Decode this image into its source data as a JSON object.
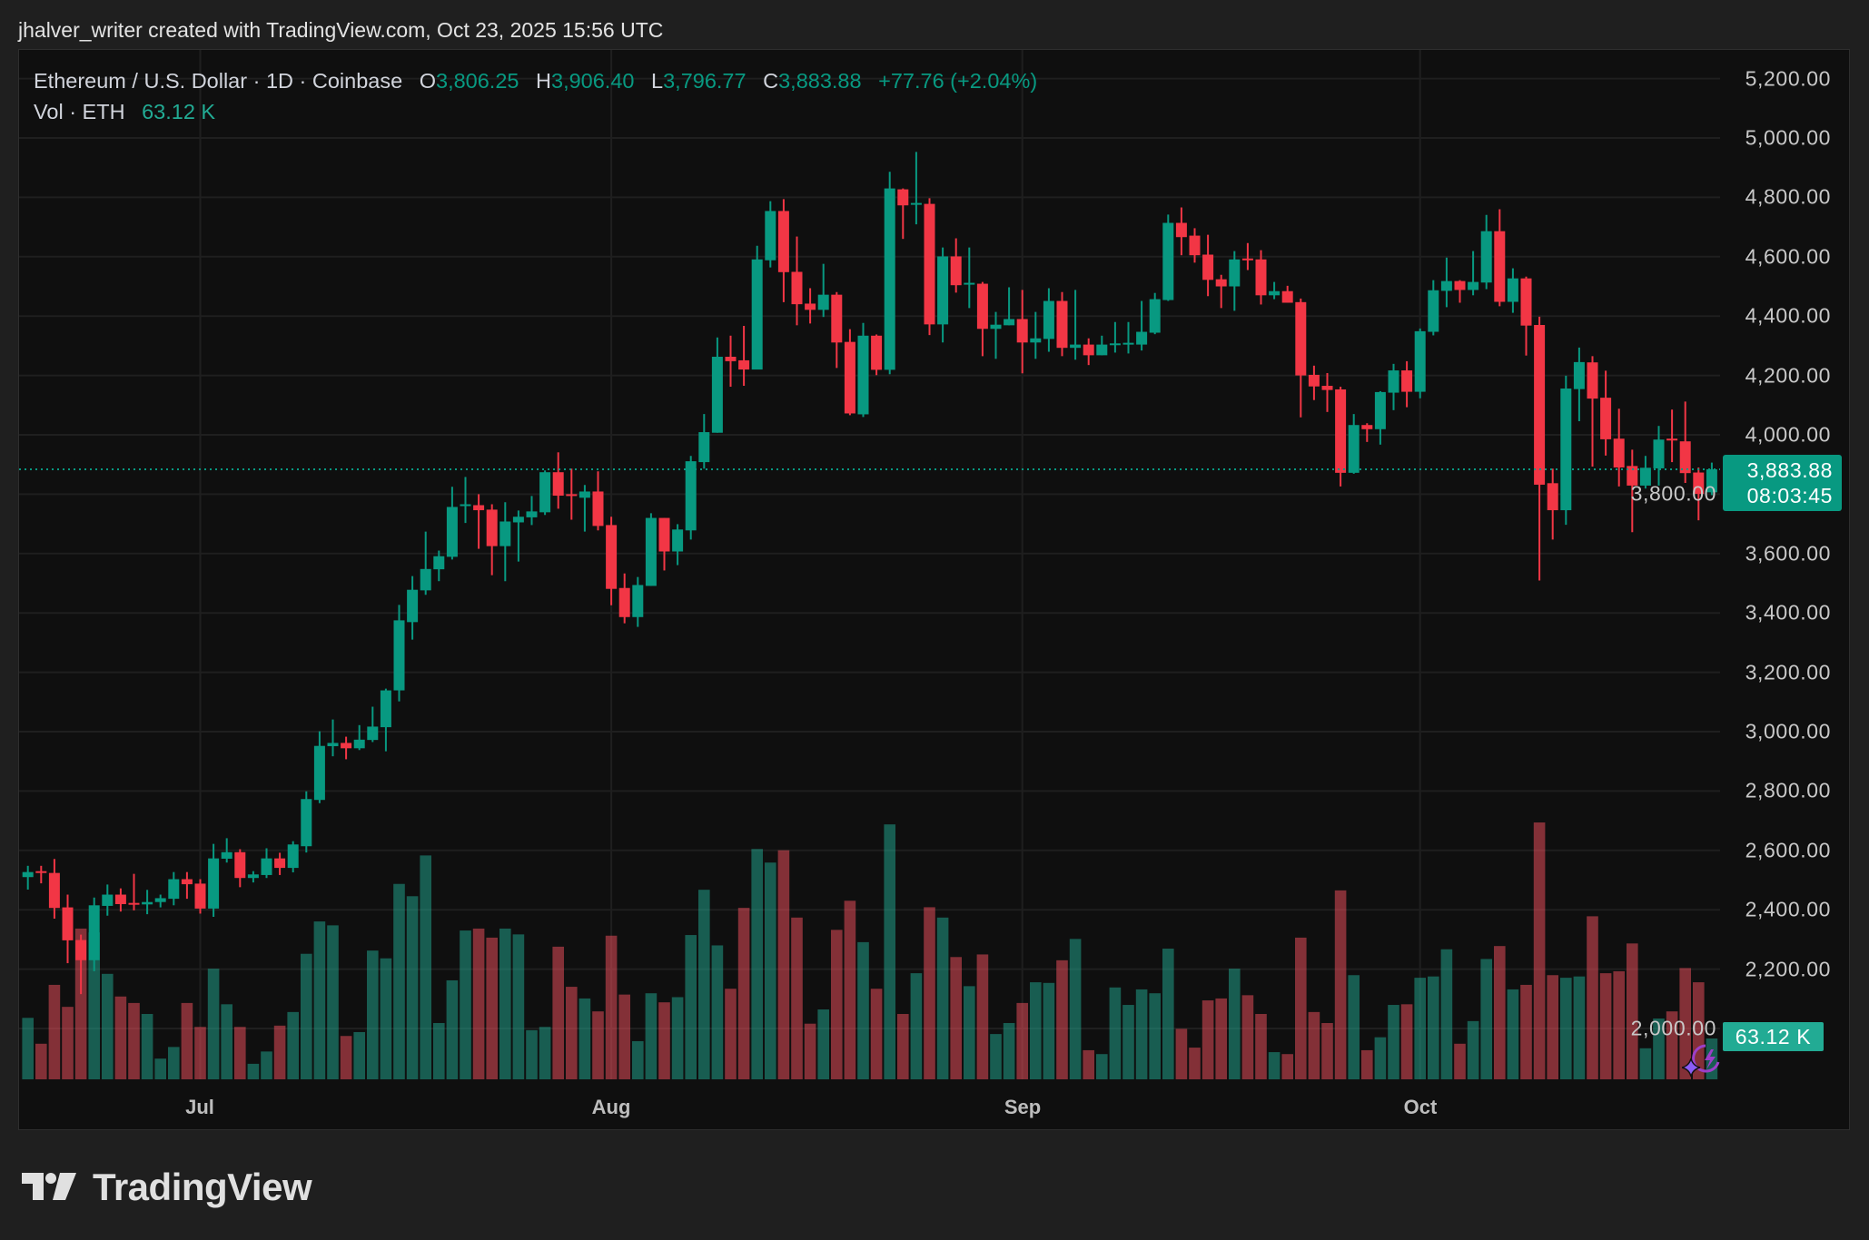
{
  "header": {
    "attribution": "jhalver_writer created with TradingView.com, Oct 23, 2025 15:56 UTC"
  },
  "legend": {
    "symbol": "Ethereum / U.S. Dollar · 1D · Coinbase",
    "o_label": "O",
    "open": "3,806.25",
    "h_label": "H",
    "high": "3,906.40",
    "l_label": "L",
    "low": "3,796.77",
    "c_label": "C",
    "close": "3,883.88",
    "change": "+77.76 (+2.04%)",
    "vol_label": "Vol · ETH",
    "vol_value": "63.12 K"
  },
  "price_axis": {
    "ticks": [
      "5,200.00",
      "5,000.00",
      "4,800.00",
      "4,600.00",
      "4,400.00",
      "4,200.00",
      "4,000.00",
      "3,800.00",
      "3,600.00",
      "3,400.00",
      "3,200.00",
      "3,000.00",
      "2,800.00",
      "2,600.00",
      "2,400.00",
      "2,200.00",
      "2,000.00"
    ],
    "last_price": "3,883.88",
    "countdown": "08:03:45",
    "volume_label": "63.12 K"
  },
  "time_axis": {
    "labels": [
      "Jul",
      "Aug",
      "Sep",
      "Oct"
    ]
  },
  "logo": {
    "text": "TradingView"
  },
  "colors": {
    "up": "#089981",
    "down": "#f23645",
    "volume_up": "#22ab94",
    "volume_down": "#f7525f",
    "background": "#0f0f0f",
    "ai_icon": "#8b5cf6"
  },
  "icons": [
    "tradingview-logo-icon",
    "ai-assistant-icon"
  ],
  "chart_data": {
    "type": "candlestick",
    "title": "Ethereum / U.S. Dollar · 1D · Coinbase",
    "interval": "1D",
    "ylim": [
      2000,
      5200
    ],
    "grid": true,
    "last_price": 3883.88,
    "columns": [
      "date",
      "open",
      "high",
      "low",
      "close",
      "volume_k"
    ],
    "rows": [
      [
        "2025-06-18",
        2510,
        2548,
        2468,
        2527,
        95
      ],
      [
        "2025-06-19",
        2530,
        2548,
        2489,
        2524,
        55
      ],
      [
        "2025-06-20",
        2524,
        2571,
        2370,
        2406,
        146
      ],
      [
        "2025-06-21",
        2408,
        2451,
        2220,
        2297,
        112
      ],
      [
        "2025-06-22",
        2298,
        2316,
        2116,
        2230,
        233
      ],
      [
        "2025-06-23",
        2230,
        2441,
        2193,
        2415,
        227
      ],
      [
        "2025-06-24",
        2413,
        2485,
        2380,
        2451,
        163
      ],
      [
        "2025-06-25",
        2451,
        2472,
        2394,
        2419,
        128
      ],
      [
        "2025-06-26",
        2423,
        2521,
        2398,
        2418,
        118
      ],
      [
        "2025-06-27",
        2418,
        2467,
        2385,
        2426,
        101
      ],
      [
        "2025-06-28",
        2426,
        2451,
        2408,
        2439,
        32
      ],
      [
        "2025-06-29",
        2437,
        2527,
        2415,
        2503,
        50
      ],
      [
        "2025-06-30",
        2503,
        2527,
        2437,
        2486,
        118
      ],
      [
        "2025-07-01",
        2488,
        2503,
        2387,
        2404,
        81
      ],
      [
        "2025-07-02",
        2404,
        2622,
        2376,
        2573,
        171
      ],
      [
        "2025-07-03",
        2572,
        2641,
        2559,
        2594,
        116
      ],
      [
        "2025-07-04",
        2594,
        2604,
        2476,
        2507,
        81
      ],
      [
        "2025-07-05",
        2507,
        2530,
        2492,
        2519,
        24
      ],
      [
        "2025-07-06",
        2517,
        2607,
        2507,
        2573,
        43
      ],
      [
        "2025-07-07",
        2573,
        2592,
        2517,
        2541,
        83
      ],
      [
        "2025-07-08",
        2541,
        2631,
        2526,
        2620,
        104
      ],
      [
        "2025-07-09",
        2614,
        2799,
        2593,
        2773,
        194
      ],
      [
        "2025-07-10",
        2770,
        3001,
        2759,
        2952,
        244
      ],
      [
        "2025-07-11",
        2951,
        3041,
        2917,
        2962,
        238
      ],
      [
        "2025-07-12",
        2962,
        2983,
        2907,
        2944,
        67
      ],
      [
        "2025-07-13",
        2944,
        3022,
        2938,
        2973,
        73
      ],
      [
        "2025-07-14",
        2972,
        3084,
        2965,
        3017,
        199
      ],
      [
        "2025-07-15",
        3015,
        3145,
        2934,
        3139,
        187
      ],
      [
        "2025-07-16",
        3139,
        3427,
        3102,
        3375,
        302
      ],
      [
        "2025-07-17",
        3369,
        3524,
        3310,
        3478,
        283
      ],
      [
        "2025-07-18",
        3476,
        3674,
        3461,
        3548,
        346
      ],
      [
        "2025-07-19",
        3547,
        3610,
        3507,
        3591,
        87
      ],
      [
        "2025-07-20",
        3589,
        3825,
        3580,
        3757,
        153
      ],
      [
        "2025-07-21",
        3761,
        3858,
        3703,
        3766,
        230
      ],
      [
        "2025-07-22",
        3763,
        3800,
        3616,
        3746,
        233
      ],
      [
        "2025-07-23",
        3748,
        3766,
        3527,
        3625,
        219
      ],
      [
        "2025-07-24",
        3625,
        3773,
        3507,
        3708,
        233
      ],
      [
        "2025-07-25",
        3705,
        3745,
        3573,
        3724,
        224
      ],
      [
        "2025-07-26",
        3722,
        3794,
        3696,
        3742,
        76
      ],
      [
        "2025-07-27",
        3739,
        3880,
        3730,
        3874,
        81
      ],
      [
        "2025-07-28",
        3874,
        3941,
        3751,
        3795,
        205
      ],
      [
        "2025-07-29",
        3800,
        3886,
        3714,
        3795,
        143
      ],
      [
        "2025-07-30",
        3788,
        3831,
        3674,
        3809,
        125
      ],
      [
        "2025-07-31",
        3809,
        3877,
        3678,
        3693,
        105
      ],
      [
        "2025-08-01",
        3696,
        3724,
        3426,
        3481,
        222
      ],
      [
        "2025-08-02",
        3484,
        3533,
        3365,
        3386,
        131
      ],
      [
        "2025-08-03",
        3386,
        3521,
        3353,
        3494,
        59
      ],
      [
        "2025-08-04",
        3491,
        3736,
        3491,
        3720,
        133
      ],
      [
        "2025-08-05",
        3720,
        3720,
        3543,
        3607,
        119
      ],
      [
        "2025-08-06",
        3607,
        3699,
        3561,
        3681,
        127
      ],
      [
        "2025-08-07",
        3678,
        3929,
        3647,
        3911,
        223
      ],
      [
        "2025-08-08",
        3908,
        4070,
        3886,
        4009,
        293
      ],
      [
        "2025-08-09",
        4007,
        4328,
        4007,
        4263,
        207
      ],
      [
        "2025-08-10",
        4263,
        4334,
        4162,
        4248,
        140
      ],
      [
        "2025-08-11",
        4251,
        4367,
        4165,
        4220,
        265
      ],
      [
        "2025-08-12",
        4220,
        4637,
        4220,
        4591,
        356
      ],
      [
        "2025-08-13",
        4588,
        4787,
        4564,
        4754,
        335
      ],
      [
        "2025-08-14",
        4754,
        4794,
        4447,
        4548,
        354
      ],
      [
        "2025-08-15",
        4549,
        4668,
        4369,
        4440,
        250
      ],
      [
        "2025-08-16",
        4442,
        4494,
        4375,
        4421,
        86
      ],
      [
        "2025-08-17",
        4421,
        4576,
        4397,
        4472,
        108
      ],
      [
        "2025-08-18",
        4472,
        4481,
        4225,
        4311,
        231
      ],
      [
        "2025-08-19",
        4313,
        4356,
        4066,
        4072,
        276
      ],
      [
        "2025-08-20",
        4069,
        4377,
        4060,
        4334,
        212
      ],
      [
        "2025-08-21",
        4334,
        4338,
        4201,
        4219,
        140
      ],
      [
        "2025-08-22",
        4219,
        4886,
        4204,
        4830,
        394
      ],
      [
        "2025-08-23",
        4827,
        4830,
        4660,
        4773,
        101
      ],
      [
        "2025-08-24",
        4776,
        4953,
        4709,
        4781,
        164
      ],
      [
        "2025-08-25",
        4778,
        4797,
        4336,
        4372,
        266
      ],
      [
        "2025-08-26",
        4372,
        4631,
        4311,
        4601,
        250
      ],
      [
        "2025-08-27",
        4601,
        4662,
        4479,
        4504,
        189
      ],
      [
        "2025-08-28",
        4507,
        4631,
        4427,
        4512,
        144
      ],
      [
        "2025-08-29",
        4509,
        4515,
        4265,
        4357,
        193
      ],
      [
        "2025-08-30",
        4357,
        4414,
        4256,
        4371,
        70
      ],
      [
        "2025-08-31",
        4369,
        4497,
        4369,
        4390,
        87
      ],
      [
        "2025-09-01",
        4390,
        4488,
        4207,
        4311,
        118
      ],
      [
        "2025-09-02",
        4311,
        4414,
        4256,
        4325,
        150
      ],
      [
        "2025-09-03",
        4323,
        4494,
        4280,
        4451,
        149
      ],
      [
        "2025-09-04",
        4451,
        4481,
        4265,
        4293,
        184
      ],
      [
        "2025-09-05",
        4293,
        4488,
        4253,
        4304,
        217
      ],
      [
        "2025-09-06",
        4304,
        4325,
        4235,
        4268,
        45
      ],
      [
        "2025-09-07",
        4268,
        4334,
        4268,
        4304,
        39
      ],
      [
        "2025-09-08",
        4303,
        4380,
        4277,
        4308,
        142
      ],
      [
        "2025-09-09",
        4306,
        4380,
        4274,
        4310,
        115
      ],
      [
        "2025-09-10",
        4304,
        4451,
        4284,
        4347,
        139
      ],
      [
        "2025-09-11",
        4344,
        4478,
        4339,
        4457,
        133
      ],
      [
        "2025-09-12",
        4454,
        4742,
        4451,
        4714,
        202
      ],
      [
        "2025-09-13",
        4714,
        4766,
        4605,
        4666,
        78
      ],
      [
        "2025-09-14",
        4671,
        4696,
        4580,
        4605,
        49
      ],
      [
        "2025-09-15",
        4607,
        4674,
        4467,
        4522,
        122
      ],
      [
        "2025-09-16",
        4524,
        4539,
        4427,
        4500,
        125
      ],
      [
        "2025-09-17",
        4500,
        4619,
        4418,
        4591,
        171
      ],
      [
        "2025-09-18",
        4594,
        4646,
        4555,
        4589,
        130
      ],
      [
        "2025-09-19",
        4591,
        4622,
        4439,
        4470,
        101
      ],
      [
        "2025-09-20",
        4470,
        4515,
        4457,
        4484,
        42
      ],
      [
        "2025-09-21",
        4484,
        4502,
        4445,
        4445,
        39
      ],
      [
        "2025-09-22",
        4447,
        4459,
        4059,
        4200,
        219
      ],
      [
        "2025-09-23",
        4202,
        4233,
        4117,
        4163,
        104
      ],
      [
        "2025-09-24",
        4165,
        4208,
        4077,
        4151,
        87
      ],
      [
        "2025-09-25",
        4153,
        4162,
        3826,
        3872,
        292
      ],
      [
        "2025-09-26",
        3872,
        4070,
        3869,
        4033,
        161
      ],
      [
        "2025-09-27",
        4033,
        4039,
        3976,
        4019,
        45
      ],
      [
        "2025-09-28",
        4019,
        4147,
        3967,
        4144,
        65
      ],
      [
        "2025-09-29",
        4142,
        4239,
        4083,
        4217,
        115
      ],
      [
        "2025-09-30",
        4217,
        4248,
        4093,
        4145,
        116
      ],
      [
        "2025-10-01",
        4145,
        4358,
        4123,
        4349,
        157
      ],
      [
        "2025-10-02",
        4347,
        4521,
        4335,
        4487,
        159
      ],
      [
        "2025-10-03",
        4485,
        4597,
        4430,
        4518,
        201
      ],
      [
        "2025-10-04",
        4518,
        4521,
        4445,
        4488,
        55
      ],
      [
        "2025-10-05",
        4488,
        4619,
        4470,
        4515,
        90
      ],
      [
        "2025-10-06",
        4513,
        4741,
        4491,
        4686,
        186
      ],
      [
        "2025-10-07",
        4686,
        4760,
        4433,
        4448,
        206
      ],
      [
        "2025-10-08",
        4448,
        4561,
        4411,
        4527,
        139
      ],
      [
        "2025-10-09",
        4527,
        4533,
        4267,
        4368,
        146
      ],
      [
        "2025-10-10",
        4370,
        4398,
        3509,
        3832,
        397
      ],
      [
        "2025-10-11",
        3837,
        3886,
        3647,
        3746,
        161
      ],
      [
        "2025-10-12",
        3746,
        4199,
        3697,
        4156,
        157
      ],
      [
        "2025-10-13",
        4154,
        4294,
        4046,
        4245,
        159
      ],
      [
        "2025-10-14",
        4244,
        4265,
        3893,
        4122,
        252
      ],
      [
        "2025-10-15",
        4125,
        4216,
        3930,
        3985,
        164
      ],
      [
        "2025-10-16",
        3987,
        4088,
        3826,
        3890,
        167
      ],
      [
        "2025-10-17",
        3895,
        3950,
        3672,
        3829,
        210
      ],
      [
        "2025-10-18",
        3829,
        3929,
        3819,
        3889,
        48
      ],
      [
        "2025-10-19",
        3887,
        4030,
        3829,
        3984,
        94
      ],
      [
        "2025-10-20",
        3987,
        4085,
        3908,
        3982,
        105
      ],
      [
        "2025-10-21",
        3978,
        4112,
        3838,
        3871,
        172
      ],
      [
        "2025-10-22",
        3873,
        3890,
        3712,
        3801,
        150
      ],
      [
        "2025-10-23",
        3806.25,
        3906.4,
        3796.77,
        3883.88,
        63.12
      ]
    ]
  }
}
